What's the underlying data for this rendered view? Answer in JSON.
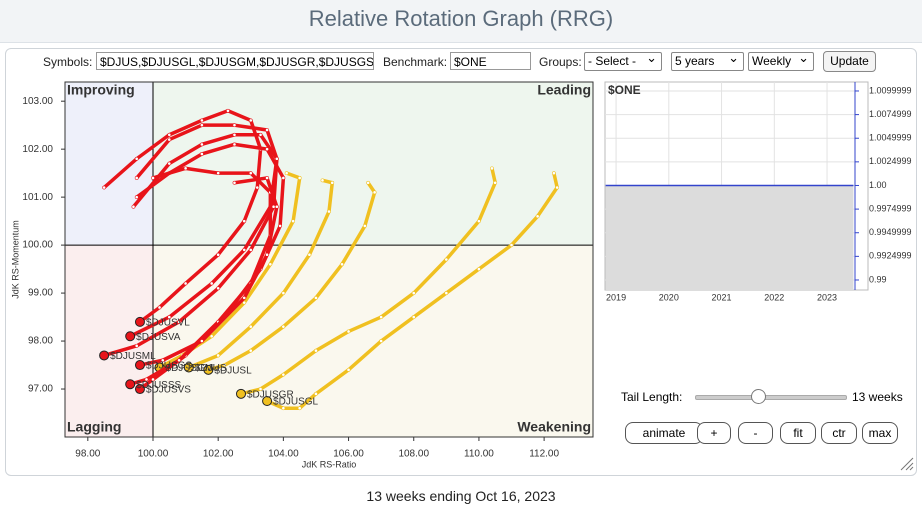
{
  "header": {
    "title": "Relative Rotation Graph (RRG)"
  },
  "toolbar": {
    "symbols_label": "Symbols:",
    "symbols": "$DJUS,$DJUSGL,$DJUSGM,$DJUSGR,$DJUSGS",
    "benchmark_label": "Benchmark:",
    "benchmark": "$ONE",
    "groups_label": "Groups:",
    "groups": "- Select -",
    "period": "5 years",
    "frequency": "Weekly",
    "update": "Update"
  },
  "chart_data": [
    {
      "type": "scatter",
      "x_label": "JdK RS-Ratio",
      "y_label": "JdK RS-Momentum",
      "quadrants": {
        "improving": "Improving",
        "leading": "Leading",
        "lagging": "Lagging",
        "weakening": "Weakening"
      },
      "center": 100,
      "xlim": [
        97.3,
        113.5
      ],
      "ylim": [
        96.0,
        103.4
      ],
      "xticks": [
        {
          "value": 98,
          "label": "98.00"
        },
        {
          "value": 100,
          "label": "100.00"
        },
        {
          "value": 102,
          "label": "102.00"
        },
        {
          "value": 104,
          "label": "104.00"
        },
        {
          "value": 106,
          "label": "106.00"
        },
        {
          "value": 108,
          "label": "108.00"
        },
        {
          "value": 110,
          "label": "110.00"
        },
        {
          "value": 112,
          "label": "112.00"
        }
      ],
      "yticks": [
        {
          "value": 97,
          "label": "97.00"
        },
        {
          "value": 98,
          "label": "98.00"
        },
        {
          "value": 99,
          "label": "99.00"
        },
        {
          "value": 100,
          "label": "100.00"
        },
        {
          "value": 101,
          "label": "101.00"
        },
        {
          "value": 102,
          "label": "102.00"
        },
        {
          "value": 103,
          "label": "103.00"
        }
      ],
      "series": [
        {
          "name": "$DJUSGL",
          "color": "#f0c020",
          "x": [
            112.3,
            112.4,
            111.8,
            111,
            110,
            109,
            108,
            107,
            106,
            105,
            104.5,
            104,
            103.5
          ],
          "y": [
            101.5,
            101.2,
            100.6,
            100,
            99.5,
            99,
            98.5,
            98,
            97.4,
            96.9,
            96.6,
            96.6,
            96.75
          ]
        },
        {
          "name": "$DJUSGR",
          "color": "#f0c020",
          "x": [
            110.4,
            110.5,
            110,
            109,
            108,
            107,
            106,
            105,
            104,
            103.3,
            102.7
          ],
          "y": [
            101.6,
            101.3,
            100.5,
            99.7,
            99,
            98.5,
            98.2,
            97.8,
            97.3,
            97,
            96.9
          ]
        },
        {
          "name": "$DJUSL",
          "color": "#f0c020",
          "x": [
            106.6,
            106.8,
            106.5,
            105.8,
            105,
            104,
            103,
            102.2,
            101.7
          ],
          "y": [
            101.3,
            101.1,
            100.4,
            99.6,
            98.9,
            98.3,
            97.8,
            97.5,
            97.4
          ]
        },
        {
          "name": "$DJUS",
          "color": "#f0c020",
          "x": [
            105.2,
            105.5,
            105.4,
            104.8,
            104,
            103,
            102,
            101.1
          ],
          "y": [
            101.35,
            101.3,
            100.7,
            99.8,
            99,
            98.3,
            97.7,
            97.45
          ]
        },
        {
          "name": "$DJUSGM",
          "color": "#f0c020",
          "x": [
            104.1,
            104.5,
            104.3,
            103.6,
            102.8,
            101.8,
            100.9,
            100.2
          ],
          "y": [
            101.5,
            101.4,
            100.5,
            99.6,
            98.8,
            98.1,
            97.7,
            97.45
          ]
        },
        {
          "name": "$DJUSVL",
          "color": "#e8141a",
          "x": [
            98.5,
            99.5,
            100.5,
            101.5,
            102.3,
            103,
            103.3,
            103.2,
            102.8,
            102,
            101,
            100.2,
            99.6
          ],
          "y": [
            101.2,
            101.8,
            102.3,
            102.6,
            102.8,
            102.6,
            102,
            101.2,
            100.5,
            99.8,
            99.2,
            98.7,
            98.4
          ]
        },
        {
          "name": "$DJUSVA",
          "color": "#e8141a",
          "x": [
            99.5,
            100.5,
            101.5,
            102.5,
            103.5,
            103.8,
            103.6,
            102.8,
            101.8,
            100.5,
            99.3
          ],
          "y": [
            101.4,
            102.2,
            102.5,
            102.5,
            102.4,
            101.8,
            100.8,
            99.9,
            99.2,
            98.5,
            98.1
          ]
        },
        {
          "name": "$DJUSML",
          "color": "#e8141a",
          "x": [
            99.4,
            100.5,
            101.5,
            102.5,
            103.3,
            103.8,
            103.7,
            103,
            102,
            100.8,
            99.5,
            98.5
          ],
          "y": [
            100.8,
            101.7,
            102.1,
            102.3,
            102.3,
            101.8,
            100.8,
            99.9,
            99.1,
            98.4,
            97.9,
            97.7
          ]
        },
        {
          "name": "$DJUSVS",
          "color": "#e8141a",
          "x": [
            99.5,
            100.5,
            101.5,
            102.5,
            103.5,
            104,
            103.9,
            103.3,
            102.3,
            101,
            100,
            99.6
          ],
          "y": [
            101,
            101.5,
            101.9,
            102.1,
            102,
            101.4,
            100.4,
            99.5,
            98.6,
            97.7,
            97.2,
            97
          ]
        },
        {
          "name": "$DJUSSS",
          "color": "#e8141a",
          "x": [
            100,
            101,
            102,
            103,
            103.6,
            103.6,
            103,
            102,
            100.8,
            99.8,
            99.3
          ],
          "y": [
            101.4,
            101.6,
            101.5,
            101.5,
            101.1,
            100.2,
            99.2,
            98.4,
            97.6,
            97.2,
            97.1
          ]
        },
        {
          "name": "$DJUSGS",
          "color": "#e8141a",
          "x": [
            102.5,
            103.5,
            103.8,
            103.5,
            102.8,
            101.5,
            100.3,
            99.6
          ],
          "y": [
            101.3,
            101.4,
            100.8,
            99.8,
            98.9,
            98,
            97.6,
            97.5
          ]
        }
      ]
    },
    {
      "type": "line",
      "title": "$ONE",
      "xlim": [
        2018.79,
        2023.53
      ],
      "ylim": [
        0.98894,
        1.01095
      ],
      "xticks": [
        2019,
        2020,
        2021,
        2022,
        2023
      ],
      "yticks": [
        {
          "value": 1.01,
          "label": "1.0099999"
        },
        {
          "value": 1.0075,
          "label": "1.0074999"
        },
        {
          "value": 1.005,
          "label": "1.0049999"
        },
        {
          "value": 1.0025,
          "label": "1.0024999"
        },
        {
          "value": 1,
          "label": "1.00"
        },
        {
          "value": 0.9975,
          "label": "0.9974999"
        },
        {
          "value": 0.995,
          "label": "0.9949999"
        },
        {
          "value": 0.9925,
          "label": "0.9924999"
        },
        {
          "value": 0.99,
          "label": "0.99"
        }
      ],
      "series": [
        {
          "color": "#3344cc",
          "x": [
            2018.8,
            2023.5
          ],
          "y": [
            1,
            1
          ]
        }
      ]
    }
  ],
  "controls": {
    "tail_label": "Tail Length:",
    "tail_value": "13 weeks",
    "buttons": [
      "animate",
      "+",
      "-",
      "fit",
      "ctr",
      "max"
    ]
  },
  "footer": "13 weeks ending Oct 16, 2023"
}
